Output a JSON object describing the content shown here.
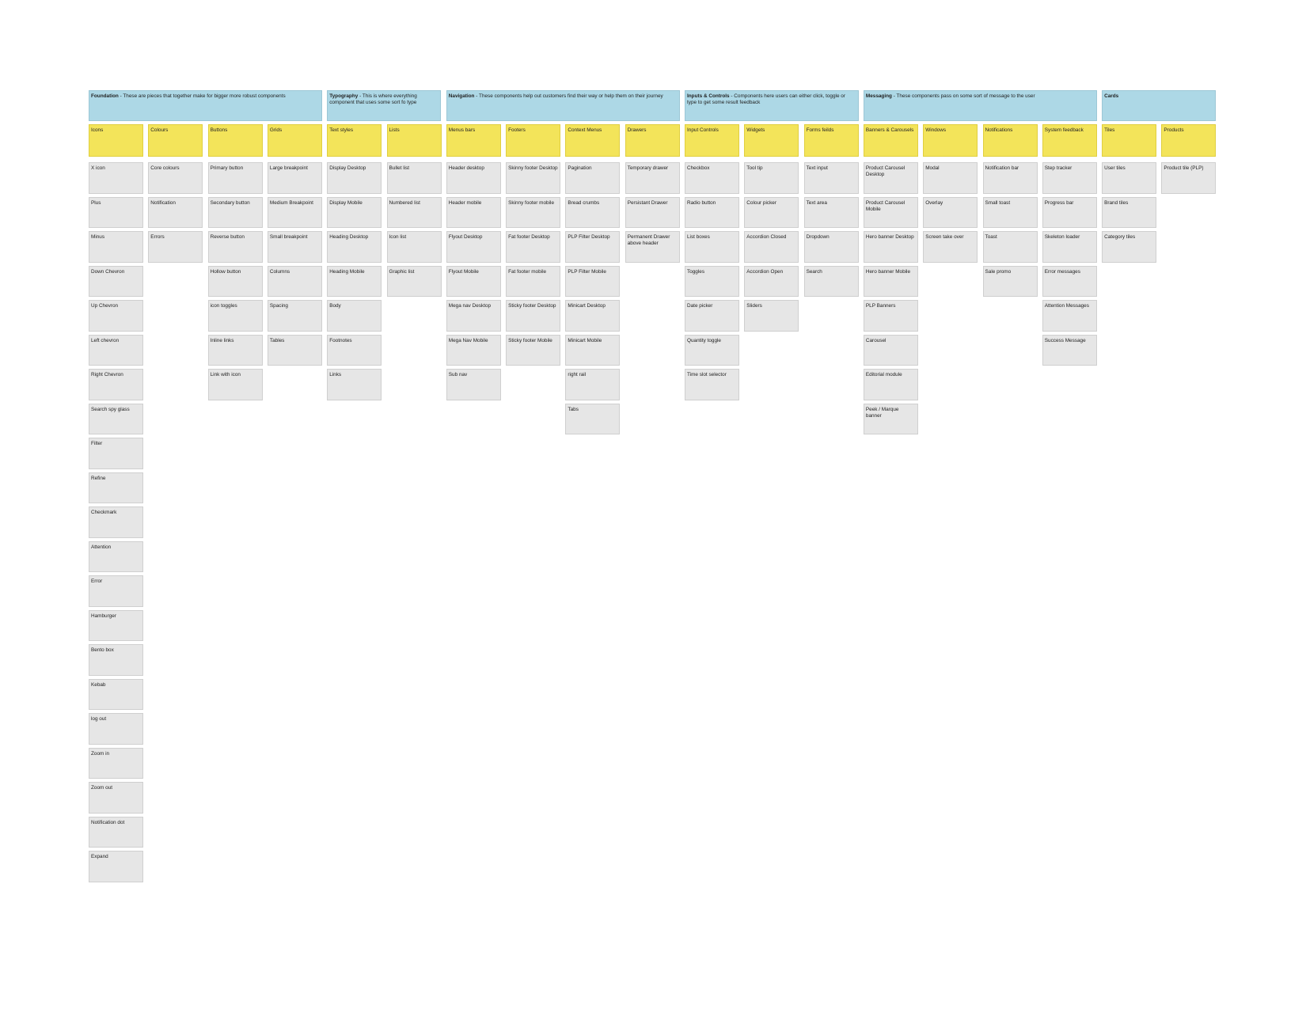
{
  "groups": [
    {
      "title": "Foundation",
      "description": "- These are pieces that together make for bigger more robust components",
      "columns": [
        {
          "heading": "Icons",
          "items": [
            "X icon",
            "Plus",
            "Minus",
            "Down Chevron",
            "Up Chevron",
            "Left chevron",
            "Right Chevron",
            "Search spy glass",
            "Filter",
            "Refine",
            "Checkmark",
            "Attention",
            "Error",
            "Hamburger",
            "Bento box",
            "Kebab",
            "log out",
            "Zoom in",
            "Zoom out",
            "Notification dot",
            "Expand"
          ]
        },
        {
          "heading": "Colours",
          "items": [
            "Core colours",
            "Notification",
            "Errors"
          ]
        },
        {
          "heading": "Buttons",
          "items": [
            "Primary button",
            "Secondary button",
            "Reverse button",
            "Hollow button",
            "icon toggles",
            "Inline links",
            "Link with icon"
          ]
        },
        {
          "heading": "Grids",
          "items": [
            "Large breakpoint",
            "Medium Breakpoint",
            "Small breakpoint",
            "Columns",
            "Spacing",
            "Tables"
          ]
        }
      ]
    },
    {
      "title": "Typography",
      "description": "- This is where everything component that uses some sort fo type",
      "columns": [
        {
          "heading": "Text styles",
          "items": [
            "Display Desktop",
            "Display Mobile",
            "Heading Desktop",
            "Heading Mobile",
            "Body",
            "Footnotes",
            "Links"
          ]
        },
        {
          "heading": "Lists",
          "items": [
            "Bullet list",
            "Numbered list",
            "Icon list",
            "Graphic list"
          ]
        }
      ]
    },
    {
      "title": "Navigation",
      "description": "- These components help out customers find their way or help them on their journey",
      "columns": [
        {
          "heading": "Menus bars",
          "items": [
            "Header desktop",
            "Header mobile",
            "Flyout Desktop",
            "Flyout Mobile",
            "Mega nav Desktop",
            "Mega Nav Mobile",
            "Sub nav"
          ]
        },
        {
          "heading": "Footers",
          "items": [
            "Skinny footer Desktop",
            "Skinny footer mobile",
            "Fat footer Desktop",
            "Fat footer mobile",
            "Sticky footer Desktop",
            "Sticky footer Mobile"
          ]
        },
        {
          "heading": "Context Menus",
          "items": [
            "Pagination",
            "Bread crumbs",
            "PLP Filter Desktop",
            "PLP Filter Mobile",
            "Minicart Desktop",
            "Minicart Mobile",
            "right rail",
            "Tabs"
          ]
        },
        {
          "heading": "Drawers",
          "items": [
            "Temporary drawer",
            "Persistant Drawer",
            "Permanent Drawer above header"
          ]
        }
      ]
    },
    {
      "title": "Inputs & Controls",
      "description": "- Components here users can either click, toggle or type to get some result feedback",
      "columns": [
        {
          "heading": "Input Controls",
          "items": [
            "Checkbox",
            "Radio button",
            "List boxes",
            "Toggles",
            "Date picker",
            "Quantity toggle",
            "Time slot selector"
          ]
        },
        {
          "heading": "Widgets",
          "items": [
            "Tool tip",
            "Colour picker",
            "Accordion Closed",
            "Accordion Open",
            "Sliders"
          ]
        },
        {
          "heading": "Forms feilds",
          "items": [
            "Text input",
            "Text area",
            "Dropdown",
            "Search"
          ]
        }
      ]
    },
    {
      "title": "Messaging",
      "description": "- These components pass on some sort of message to the user",
      "columns": [
        {
          "heading": "Banners & Carousels",
          "items": [
            "Product Carousel Desktop",
            "Product Carousel Mobile",
            "Hero banner Desktop",
            "Hero banner Mobile",
            "PLP Banners",
            "Carousel",
            "Editorial module",
            "Peek / Marque banner"
          ]
        },
        {
          "heading": "Windows",
          "items": [
            "Modal",
            "Overlay",
            "Screen take over"
          ]
        },
        {
          "heading": "Notifications",
          "items": [
            "Notification bar",
            "Small toast",
            "Toast",
            "Sale promo"
          ]
        },
        {
          "heading": "System feedback",
          "items": [
            "Step tracker",
            "Progress bar",
            "Skeleton loader",
            "Error messages",
            "Attention Messages",
            "Success Message"
          ]
        }
      ]
    },
    {
      "title": "Cards",
      "columns": [
        {
          "heading": "Tiles",
          "items": [
            "User tiles",
            "Brand tiles",
            "Category tiles"
          ]
        },
        {
          "heading": "Products",
          "items": [
            "Product tile (PLP)"
          ]
        }
      ]
    }
  ]
}
